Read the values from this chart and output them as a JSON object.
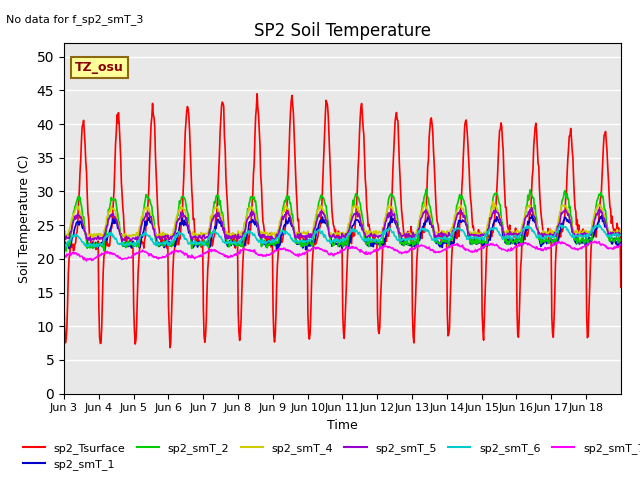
{
  "title": "SP2 Soil Temperature",
  "subtitle": "No data for f_sp2_smT_3",
  "ylabel": "Soil Temperature (C)",
  "xlabel": "Time",
  "tz_label": "TZ_osu",
  "ylim": [
    0,
    52
  ],
  "yticks": [
    0,
    5,
    10,
    15,
    20,
    25,
    30,
    35,
    40,
    45,
    50
  ],
  "xtick_labels": [
    "Jun 3",
    "Jun 4",
    "Jun 5",
    "Jun 6",
    "Jun 7",
    "Jun 8",
    "Jun 9",
    "Jun 10",
    "Jun 11",
    "Jun 12",
    "Jun 13",
    "Jun 14",
    "Jun 15",
    "Jun 16",
    "Jun 17",
    "Jun 18"
  ],
  "series_colors": {
    "sp2_Tsurface": "#FF0000",
    "sp2_smT_1": "#0000CD",
    "sp2_smT_2": "#00CC00",
    "sp2_smT_4": "#CCCC00",
    "sp2_smT_5": "#9900CC",
    "sp2_smT_6": "#00CCCC",
    "sp2_smT_7": "#FF00FF"
  },
  "background_color": "#E8E8E8",
  "fig_background": "#FFFFFF",
  "grid_color": "#FFFFFF",
  "n_days": 16,
  "pts_per_day": 48
}
